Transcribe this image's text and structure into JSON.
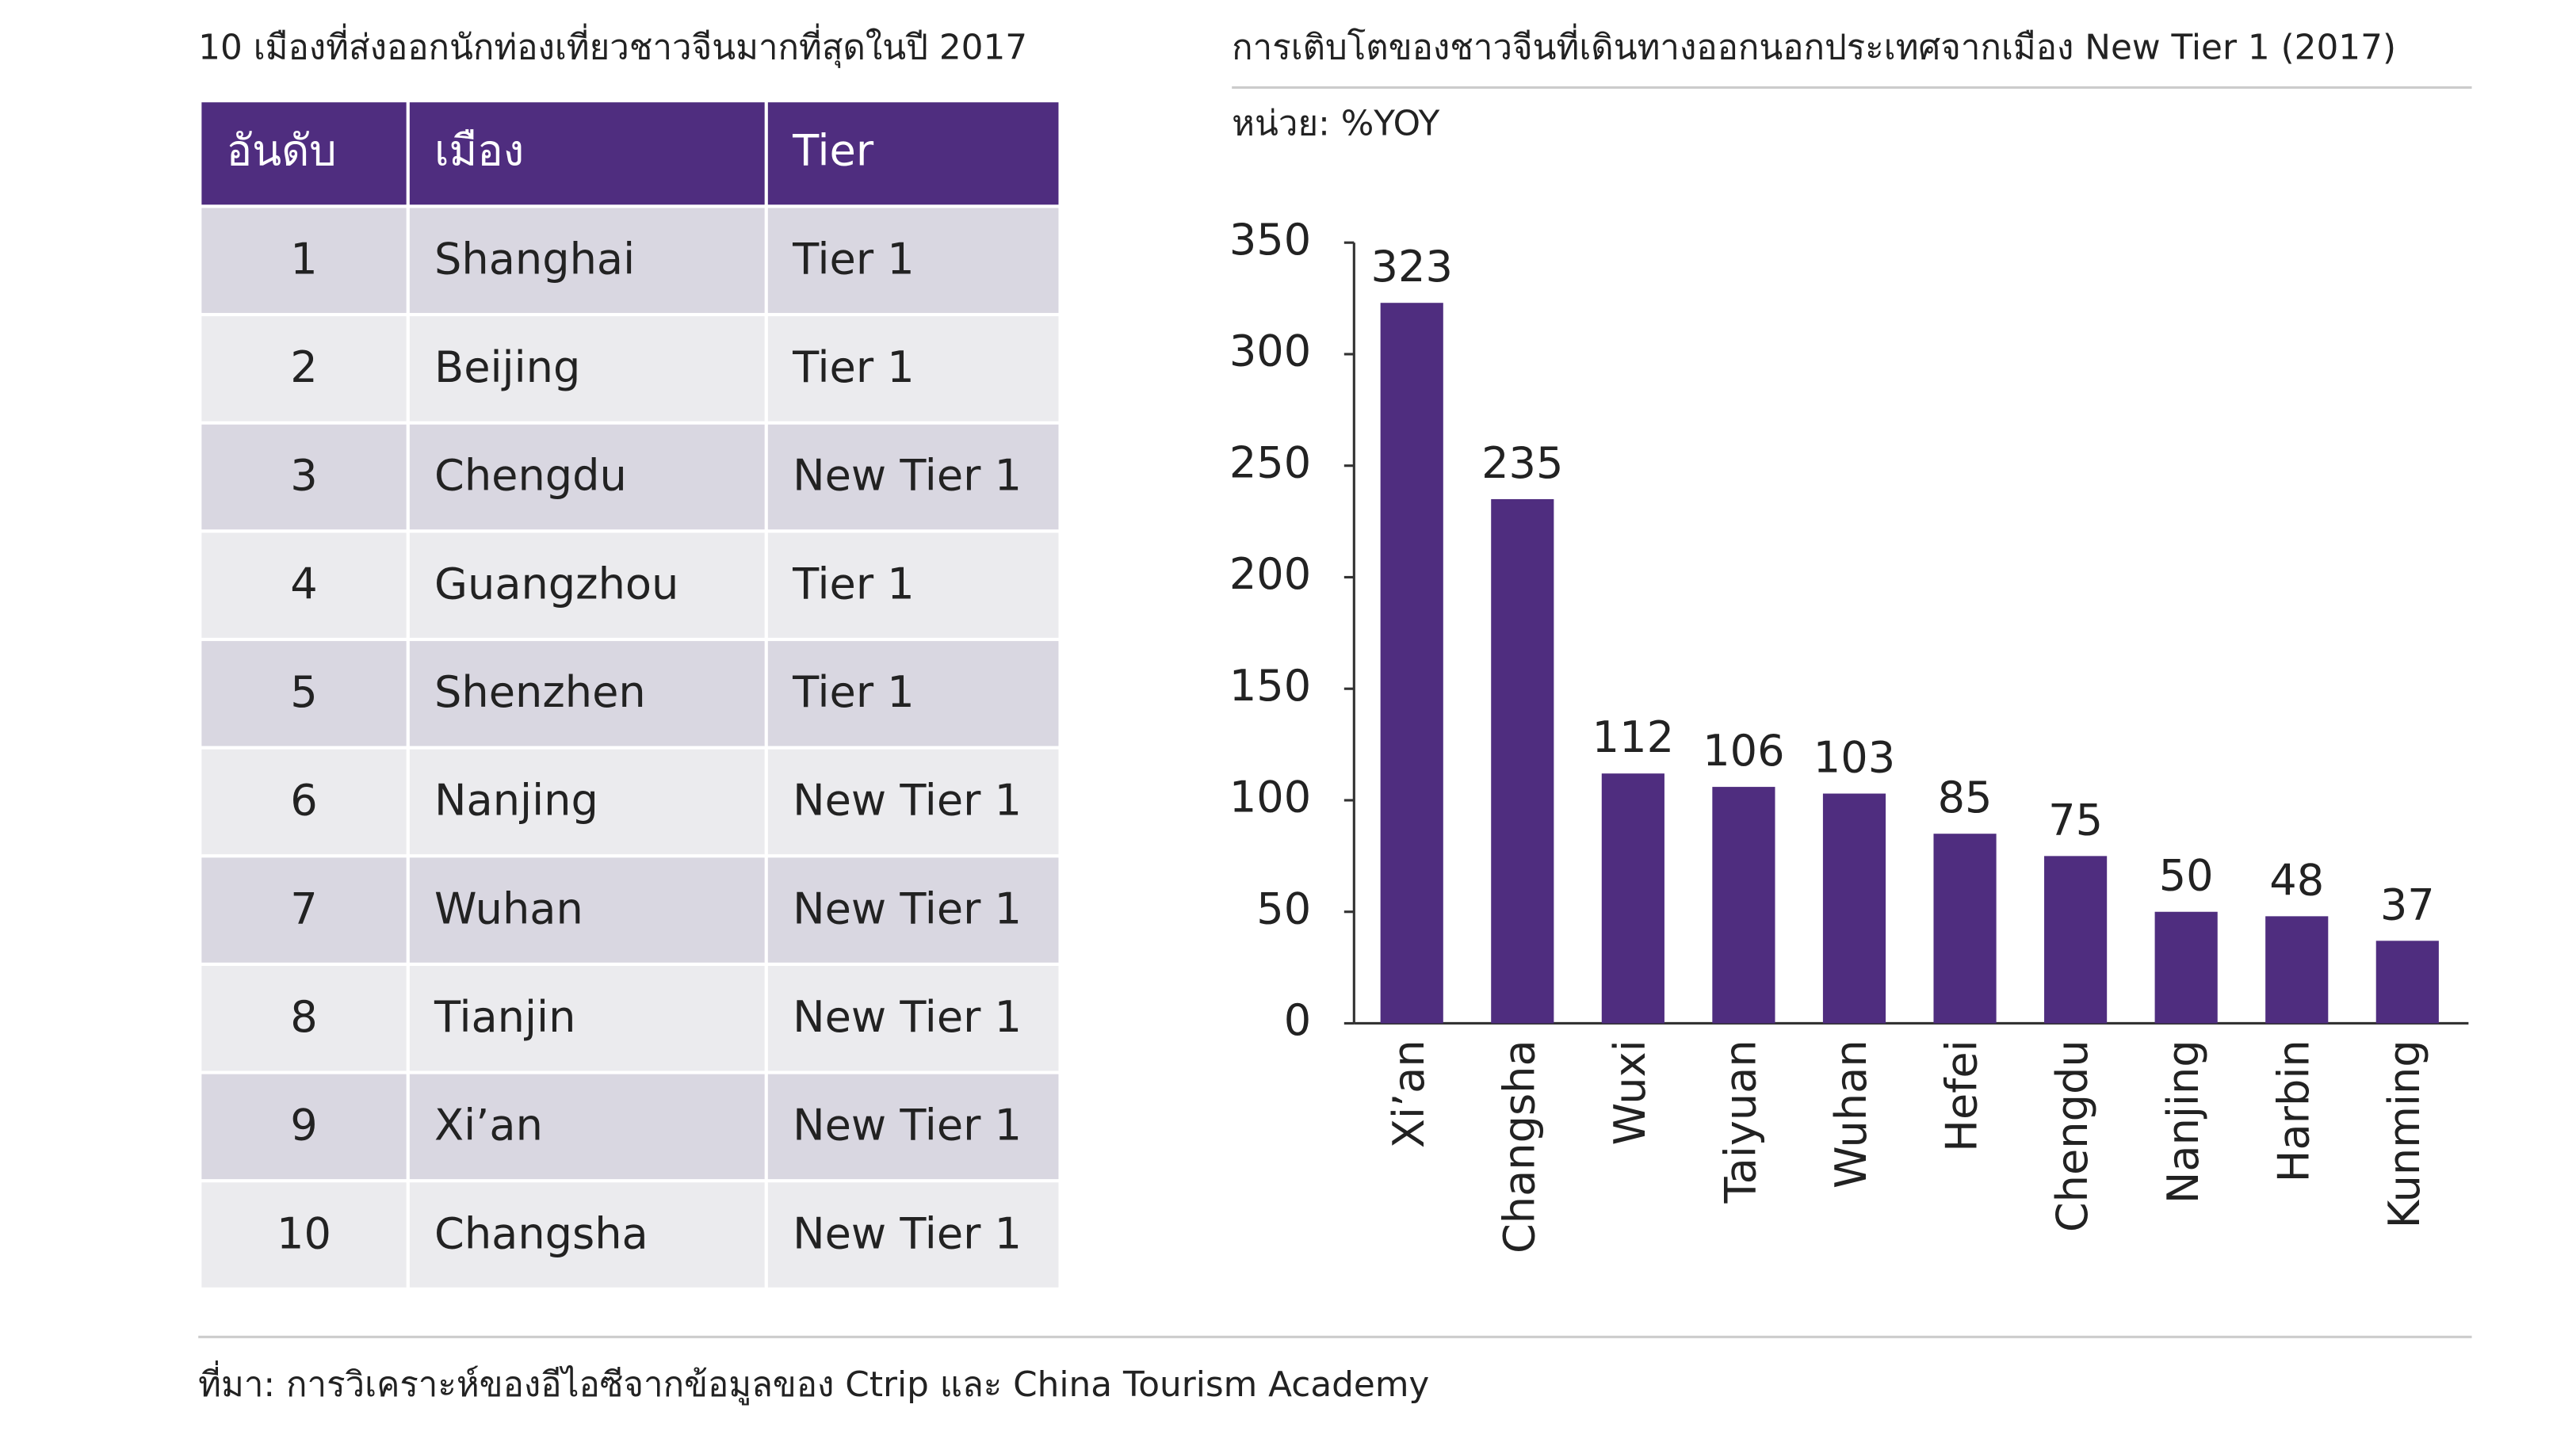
{
  "table": {
    "title": "10 เมืองที่ส่งออกนักท่องเที่ยวชาวจีนมากที่สุดในปี 2017",
    "header": [
      "อันดับ",
      "เมือง",
      "Tier"
    ],
    "rows": [
      [
        "1",
        "Shanghai",
        "Tier 1"
      ],
      [
        "2",
        "Beijing",
        "Tier 1"
      ],
      [
        "3",
        "Chengdu",
        "New Tier 1"
      ],
      [
        "4",
        "Guangzhou",
        "Tier 1"
      ],
      [
        "5",
        "Shenzhen",
        "Tier 1"
      ],
      [
        "6",
        "Nanjing",
        "New Tier 1"
      ],
      [
        "7",
        "Wuhan",
        "New Tier 1"
      ],
      [
        "8",
        "Tianjin",
        "New Tier 1"
      ],
      [
        "9",
        "Xi’an",
        "New Tier 1"
      ],
      [
        "10",
        "Changsha",
        "New Tier 1"
      ]
    ]
  },
  "chart_data": {
    "type": "bar",
    "title": "การเติบโตของชาวจีนที่เดินทางออกนอกประเทศจากเมือง New Tier 1 (2017)",
    "subtitle": "หน่วย: %YOY",
    "categories": [
      "Xi’an",
      "Changsha",
      "Wuxi",
      "Taiyuan",
      "Wuhan",
      "Hefei",
      "Chengdu",
      "Nanjing",
      "Harbin",
      "Kunming"
    ],
    "values": [
      323,
      235,
      112,
      106,
      103,
      85,
      75,
      50,
      48,
      37
    ],
    "color": "#4f2d7f",
    "ylim": [
      0,
      350
    ],
    "yticks": [
      0,
      50,
      100,
      150,
      200,
      250,
      300,
      350
    ],
    "grid": false
  },
  "source": "ที่มา: การวิเคราะห์ของอีไอซีจากข้อมูลของ Ctrip และ China Tourism Academy"
}
